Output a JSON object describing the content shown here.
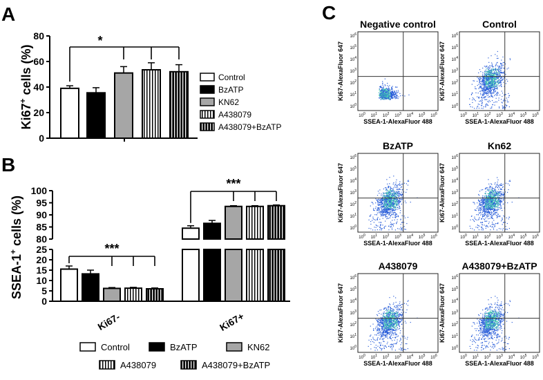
{
  "patterns": {
    "white": "#ffffff",
    "black": "#000000",
    "gray": "#a6a6a6",
    "ink": "#000000",
    "scatter_blue": "#2b5fd9",
    "scatter_core": "#45c9b2"
  },
  "legend_labels": [
    "Control",
    "BzATP",
    "KN62",
    "A438079",
    "A438079+BzATP"
  ],
  "chart_data": [
    {
      "panel": "A",
      "type": "bar",
      "ylabel_main": "Ki67",
      "ylabel_sup": "+",
      "ylabel_tail": " cells (%)",
      "yticks": [
        "0",
        "20",
        "40",
        "60",
        "80"
      ],
      "ylim": [
        0,
        80
      ],
      "series": [
        {
          "name": "Control",
          "pattern": "white",
          "value": 39,
          "err": 2
        },
        {
          "name": "BzATP",
          "pattern": "black",
          "value": 35.5,
          "err": 4
        },
        {
          "name": "KN62",
          "pattern": "gray",
          "value": 51,
          "err": 5
        },
        {
          "name": "A438079",
          "pattern": "vstripe",
          "value": 53.5,
          "err": 5.5
        },
        {
          "name": "A438079+BzATP",
          "pattern": "black_vstripe",
          "value": 52,
          "err": 5.5
        }
      ],
      "significance": "*"
    },
    {
      "panel": "B",
      "type": "bar",
      "ylabel_main": "SSEA-1",
      "ylabel_sup": "+",
      "ylabel_tail": " cells (%)",
      "yticks_lower": [
        "0",
        "5",
        "10",
        "15",
        "20",
        "25"
      ],
      "yticks_upper": [
        "80",
        "85",
        "90",
        "95",
        "100"
      ],
      "ylim_lower": [
        0,
        25
      ],
      "ylim_upper": [
        80,
        100
      ],
      "categories": [
        "Ki67-",
        "Ki67+"
      ],
      "series": [
        {
          "name": "Control",
          "pattern": "white",
          "values": [
            15.5,
            84.5
          ],
          "errs": [
            1.5,
            1
          ]
        },
        {
          "name": "BzATP",
          "pattern": "black",
          "values": [
            13.2,
            86.5
          ],
          "errs": [
            1.8,
            1.2
          ]
        },
        {
          "name": "KN62",
          "pattern": "gray",
          "values": [
            6.2,
            93.5
          ],
          "errs": [
            0.4,
            0.3
          ]
        },
        {
          "name": "A438079",
          "pattern": "vstripe",
          "values": [
            6.3,
            93.5
          ],
          "errs": [
            0.4,
            0.3
          ]
        },
        {
          "name": "A438079+BzATP",
          "pattern": "black_vstripe",
          "values": [
            6.0,
            93.8
          ],
          "errs": [
            0.4,
            0.3
          ]
        }
      ],
      "significance": [
        "***",
        "***"
      ]
    },
    {
      "panel": "C",
      "type": "scatter",
      "xlabel": "SSEA-1-AlexaFluor 488",
      "ylabel": "Ki67-AlexaFluor 647",
      "tick_exponents": [
        "0",
        "1",
        "2",
        "3",
        "4",
        "5",
        "6"
      ],
      "tick_base": "10",
      "plots": [
        {
          "title": "Negative control",
          "gate_x": 3.4,
          "gate_y": 2.6
        },
        {
          "title": "Control",
          "gate_x": 3.4,
          "gate_y": 2.6
        },
        {
          "title": "BzATP",
          "gate_x": 3.4,
          "gate_y": 2.6
        },
        {
          "title": "Kn62",
          "gate_x": 3.4,
          "gate_y": 2.6
        },
        {
          "title": "A438079",
          "gate_x": 3.4,
          "gate_y": 2.6
        },
        {
          "title": "A438079+BzATP",
          "gate_x": 3.4,
          "gate_y": 2.6
        }
      ]
    }
  ],
  "panel_letters": [
    "A",
    "B",
    "C"
  ]
}
